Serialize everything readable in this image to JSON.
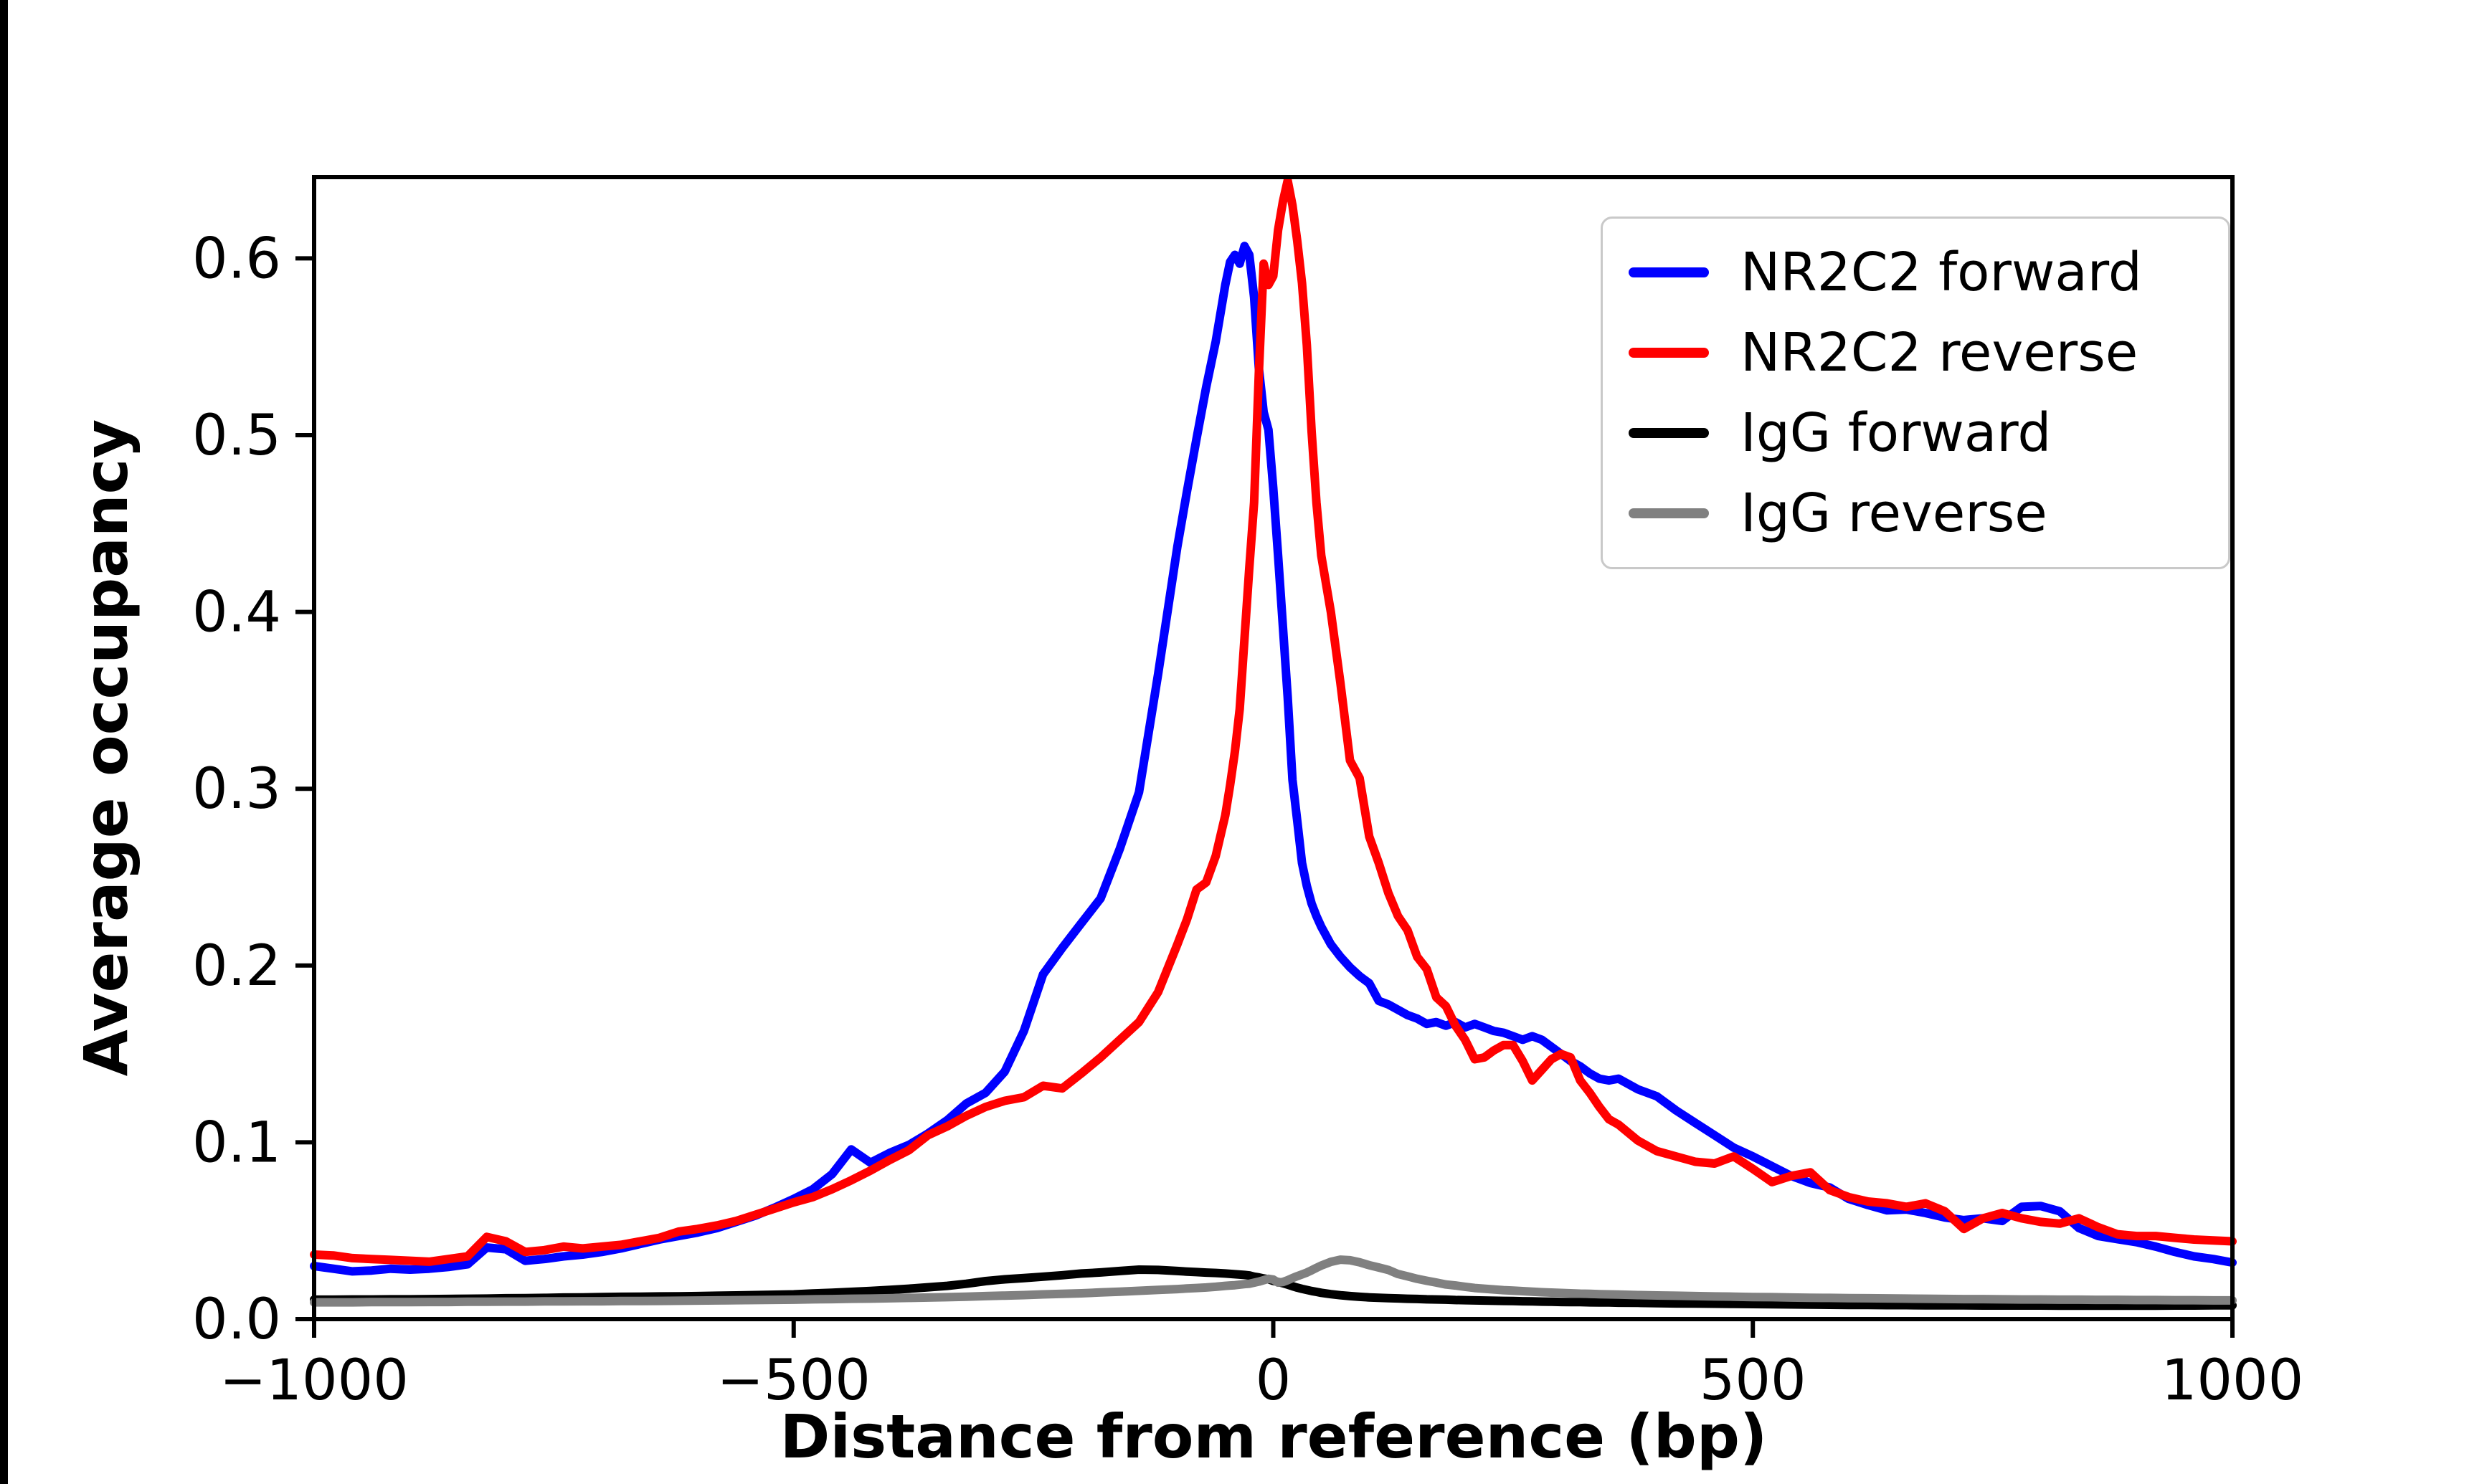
{
  "figure": {
    "background": "#ffffff"
  },
  "chart_data": {
    "type": "line",
    "title": "",
    "xlabel": "Distance from reference (bp)",
    "ylabel": "Average occupancy",
    "xlim": [
      -1000,
      1000
    ],
    "ylim": [
      0,
      0.646
    ],
    "grid": false,
    "legend": {
      "position": "upper right",
      "frame": true,
      "frame_color": "#c9c9c9"
    },
    "xticks": {
      "values": [
        -1000,
        -500,
        0,
        500,
        1000
      ],
      "labels": [
        "−1000",
        "−500",
        "0",
        "500",
        "1000"
      ]
    },
    "yticks": {
      "values": [
        0.0,
        0.1,
        0.2,
        0.3,
        0.4,
        0.5,
        0.6
      ],
      "labels": [
        "0.0",
        "0.1",
        "0.2",
        "0.3",
        "0.4",
        "0.5",
        "0.6"
      ]
    },
    "x": [
      -1000,
      -980,
      -960,
      -940,
      -920,
      -900,
      -880,
      -860,
      -840,
      -820,
      -800,
      -780,
      -760,
      -740,
      -720,
      -700,
      -680,
      -660,
      -640,
      -620,
      -600,
      -580,
      -560,
      -540,
      -520,
      -500,
      -480,
      -460,
      -440,
      -420,
      -400,
      -380,
      -360,
      -340,
      -320,
      -300,
      -280,
      -260,
      -240,
      -220,
      -200,
      -180,
      -160,
      -140,
      -120,
      -100,
      -90,
      -80,
      -70,
      -60,
      -50,
      -45,
      -40,
      -35,
      -30,
      -25,
      -20,
      -15,
      -10,
      -5,
      0,
      5,
      10,
      15,
      20,
      25,
      30,
      35,
      40,
      45,
      50,
      60,
      70,
      80,
      90,
      100,
      110,
      120,
      130,
      140,
      150,
      160,
      170,
      180,
      190,
      200,
      210,
      220,
      230,
      240,
      250,
      260,
      270,
      280,
      290,
      300,
      310,
      320,
      330,
      340,
      350,
      360,
      380,
      400,
      420,
      440,
      460,
      480,
      500,
      520,
      540,
      560,
      580,
      600,
      620,
      640,
      660,
      680,
      700,
      720,
      740,
      760,
      780,
      800,
      820,
      840,
      860,
      880,
      900,
      920,
      940,
      960,
      980,
      1000
    ],
    "series": [
      {
        "name": "NR2C2 forward",
        "color": "#0000ff",
        "values": [
          0.03,
          0.0285,
          0.027,
          0.0275,
          0.0285,
          0.028,
          0.0285,
          0.0295,
          0.031,
          0.0405,
          0.0395,
          0.033,
          0.034,
          0.0355,
          0.0365,
          0.038,
          0.04,
          0.0425,
          0.045,
          0.047,
          0.049,
          0.0515,
          0.055,
          0.0585,
          0.063,
          0.068,
          0.0735,
          0.082,
          0.096,
          0.0885,
          0.094,
          0.0985,
          0.105,
          0.1125,
          0.122,
          0.128,
          0.14,
          0.163,
          0.195,
          0.21,
          0.224,
          0.238,
          0.266,
          0.298,
          0.365,
          0.437,
          0.468,
          0.498,
          0.527,
          0.553,
          0.585,
          0.598,
          0.602,
          0.597,
          0.607,
          0.602,
          0.578,
          0.538,
          0.513,
          0.503,
          0.47,
          0.432,
          0.392,
          0.352,
          0.305,
          0.282,
          0.258,
          0.245,
          0.235,
          0.228,
          0.222,
          0.212,
          0.205,
          0.199,
          0.194,
          0.19,
          0.18,
          0.178,
          0.175,
          0.172,
          0.17,
          0.167,
          0.168,
          0.166,
          0.168,
          0.165,
          0.167,
          0.165,
          0.163,
          0.162,
          0.16,
          0.158,
          0.16,
          0.158,
          0.154,
          0.15,
          0.146,
          0.143,
          0.139,
          0.136,
          0.135,
          0.136,
          0.13,
          0.126,
          0.118,
          0.111,
          0.104,
          0.097,
          0.092,
          0.0865,
          0.081,
          0.077,
          0.0745,
          0.068,
          0.0645,
          0.0615,
          0.062,
          0.06,
          0.0575,
          0.056,
          0.057,
          0.0555,
          0.0635,
          0.064,
          0.061,
          0.0515,
          0.047,
          0.0452,
          0.0435,
          0.041,
          0.038,
          0.0355,
          0.034,
          0.032
        ]
      },
      {
        "name": "NR2C2 reverse",
        "color": "#ff0000",
        "values": [
          0.0365,
          0.036,
          0.0345,
          0.034,
          0.0335,
          0.033,
          0.0325,
          0.034,
          0.0355,
          0.0465,
          0.044,
          0.038,
          0.039,
          0.041,
          0.04,
          0.041,
          0.042,
          0.044,
          0.046,
          0.0495,
          0.051,
          0.053,
          0.0555,
          0.059,
          0.0625,
          0.066,
          0.069,
          0.0735,
          0.0785,
          0.084,
          0.09,
          0.0955,
          0.104,
          0.109,
          0.115,
          0.12,
          0.1235,
          0.1255,
          0.132,
          0.1305,
          0.139,
          0.148,
          0.158,
          0.168,
          0.185,
          0.212,
          0.226,
          0.243,
          0.247,
          0.262,
          0.285,
          0.302,
          0.321,
          0.345,
          0.385,
          0.425,
          0.462,
          0.535,
          0.597,
          0.585,
          0.59,
          0.616,
          0.632,
          0.644,
          0.63,
          0.61,
          0.586,
          0.551,
          0.502,
          0.462,
          0.432,
          0.4,
          0.36,
          0.316,
          0.306,
          0.273,
          0.258,
          0.241,
          0.228,
          0.22,
          0.205,
          0.198,
          0.182,
          0.177,
          0.166,
          0.158,
          0.147,
          0.148,
          0.152,
          0.155,
          0.155,
          0.146,
          0.135,
          0.141,
          0.147,
          0.15,
          0.148,
          0.135,
          0.128,
          0.12,
          0.113,
          0.11,
          0.101,
          0.095,
          0.092,
          0.089,
          0.088,
          0.092,
          0.085,
          0.0775,
          0.081,
          0.083,
          0.073,
          0.069,
          0.0665,
          0.0655,
          0.0635,
          0.0655,
          0.061,
          0.051,
          0.057,
          0.06,
          0.057,
          0.055,
          0.054,
          0.057,
          0.052,
          0.048,
          0.047,
          0.047,
          0.046,
          0.045,
          0.0445,
          0.044
        ]
      },
      {
        "name": "IgG forward",
        "color": "#000000",
        "values": [
          0.011,
          0.011,
          0.0111,
          0.0111,
          0.0112,
          0.0112,
          0.0113,
          0.0114,
          0.0115,
          0.0116,
          0.0118,
          0.0119,
          0.012,
          0.0122,
          0.0123,
          0.0125,
          0.0126,
          0.0127,
          0.0128,
          0.0129,
          0.013,
          0.0132,
          0.0134,
          0.0136,
          0.0138,
          0.014,
          0.0145,
          0.0149,
          0.0154,
          0.0159,
          0.0165,
          0.0172,
          0.018,
          0.0188,
          0.02,
          0.0215,
          0.0225,
          0.0232,
          0.024,
          0.0248,
          0.0258,
          0.0264,
          0.0272,
          0.028,
          0.0278,
          0.0272,
          0.0269,
          0.0266,
          0.0263,
          0.0261,
          0.0258,
          0.0256,
          0.0254,
          0.0252,
          0.025,
          0.0247,
          0.024,
          0.0236,
          0.023,
          0.0226,
          0.0216,
          0.021,
          0.0203,
          0.0195,
          0.0186,
          0.0178,
          0.0171,
          0.0165,
          0.0159,
          0.0154,
          0.0149,
          0.0141,
          0.0135,
          0.013,
          0.0126,
          0.0123,
          0.0121,
          0.0119,
          0.0117,
          0.0115,
          0.0114,
          0.0112,
          0.0111,
          0.011,
          0.0108,
          0.0107,
          0.0106,
          0.0105,
          0.0104,
          0.0103,
          0.0102,
          0.0101,
          0.01,
          0.0099,
          0.0098,
          0.0097,
          0.0096,
          0.0096,
          0.0095,
          0.0094,
          0.0094,
          0.0093,
          0.0092,
          0.009,
          0.0089,
          0.0088,
          0.0087,
          0.0086,
          0.0085,
          0.0084,
          0.0083,
          0.0082,
          0.0081,
          0.008,
          0.008,
          0.0079,
          0.0079,
          0.0078,
          0.0078,
          0.0078,
          0.0077,
          0.0077,
          0.0077,
          0.0077,
          0.0076,
          0.0076,
          0.0076,
          0.0076,
          0.0076,
          0.0076,
          0.0077,
          0.0077,
          0.0078,
          0.0078
        ]
      },
      {
        "name": "IgG reverse",
        "color": "#808080",
        "values": [
          0.0095,
          0.0095,
          0.0095,
          0.0096,
          0.0096,
          0.0096,
          0.0097,
          0.0097,
          0.0098,
          0.0098,
          0.0099,
          0.0099,
          0.01,
          0.01,
          0.0101,
          0.0101,
          0.0102,
          0.0102,
          0.0103,
          0.0104,
          0.0105,
          0.0106,
          0.0107,
          0.0108,
          0.0109,
          0.011,
          0.0112,
          0.0113,
          0.0115,
          0.0116,
          0.0118,
          0.012,
          0.0122,
          0.0124,
          0.0127,
          0.013,
          0.0133,
          0.0136,
          0.014,
          0.0143,
          0.0146,
          0.0151,
          0.0155,
          0.016,
          0.0165,
          0.017,
          0.0173,
          0.0176,
          0.0179,
          0.0183,
          0.0188,
          0.019,
          0.0192,
          0.0195,
          0.0198,
          0.02,
          0.0206,
          0.0212,
          0.022,
          0.0228,
          0.0224,
          0.0207,
          0.021,
          0.022,
          0.0232,
          0.0243,
          0.0253,
          0.0263,
          0.0276,
          0.029,
          0.0303,
          0.0324,
          0.0336,
          0.0333,
          0.0321,
          0.0305,
          0.0292,
          0.0278,
          0.0255,
          0.0242,
          0.0228,
          0.0217,
          0.0207,
          0.0196,
          0.019,
          0.0183,
          0.0176,
          0.0172,
          0.0168,
          0.0164,
          0.0161,
          0.0158,
          0.0155,
          0.0152,
          0.015,
          0.0148,
          0.0146,
          0.0144,
          0.0143,
          0.0141,
          0.014,
          0.0139,
          0.0136,
          0.0134,
          0.0132,
          0.013,
          0.0128,
          0.0127,
          0.0125,
          0.0124,
          0.0122,
          0.0121,
          0.012,
          0.0119,
          0.0118,
          0.0117,
          0.0116,
          0.0115,
          0.0114,
          0.0113,
          0.0113,
          0.0112,
          0.0111,
          0.0111,
          0.011,
          0.011,
          0.0109,
          0.0109,
          0.0108,
          0.0108,
          0.0107,
          0.0107,
          0.0106,
          0.0106
        ]
      }
    ]
  }
}
